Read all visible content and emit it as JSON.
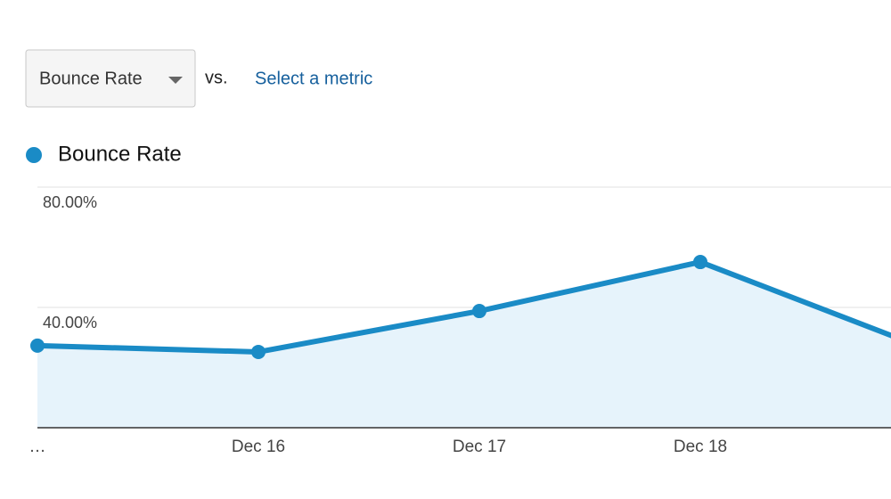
{
  "controls": {
    "metric_selector": "Bounce Rate",
    "vs_label": "vs.",
    "compare_link": "Select a metric"
  },
  "chart_data": {
    "type": "area",
    "categories": [
      "…",
      "Dec 16",
      "Dec 17",
      "Dec 18",
      null
    ],
    "series": [
      {
        "name": "Bounce Rate",
        "color": "#1a8bc6",
        "values": [
          27.3,
          25.2,
          38.8,
          55.1,
          26.8
        ]
      }
    ],
    "ylim": [
      0,
      80
    ],
    "yticks": [
      {
        "value": 40,
        "label": "40.00%"
      },
      {
        "value": 80,
        "label": "80.00%"
      }
    ],
    "grid": true
  }
}
